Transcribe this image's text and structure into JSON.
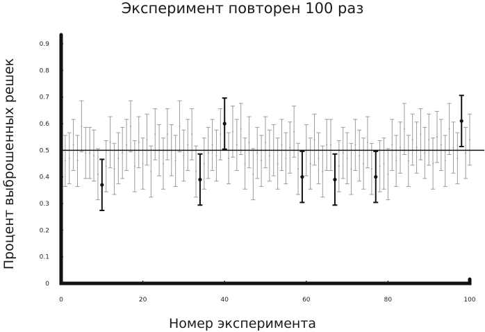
{
  "chart_data": {
    "type": "scatter",
    "title": "Эксперимент повторен 100 раз",
    "xlabel": "Номер эксперимента",
    "ylabel": "Процент выброшенных решек",
    "xlim": [
      0,
      100
    ],
    "ylim": [
      0,
      0.9
    ],
    "x_ticks": [
      "0",
      "20",
      "40",
      "60",
      "80",
      "100"
    ],
    "y_ticks": [
      "0",
      "0.1",
      "0.2",
      "0.3",
      "0.4",
      "0.5",
      "0.6",
      "0.7",
      "0.8",
      "0.9"
    ],
    "reference_line": 0.5,
    "error_halfwidth": 0.096,
    "colors": {
      "inside": "#9b9b9b",
      "outside": "#111111"
    },
    "points": [
      {
        "x": 1,
        "y": 0.46
      },
      {
        "x": 2,
        "y": 0.47
      },
      {
        "x": 3,
        "y": 0.52
      },
      {
        "x": 4,
        "y": 0.46
      },
      {
        "x": 5,
        "y": 0.59
      },
      {
        "x": 6,
        "y": 0.49
      },
      {
        "x": 7,
        "y": 0.49
      },
      {
        "x": 8,
        "y": 0.48
      },
      {
        "x": 9,
        "y": 0.41
      },
      {
        "x": 10,
        "y": 0.37,
        "outside": true
      },
      {
        "x": 11,
        "y": 0.44
      },
      {
        "x": 12,
        "y": 0.53
      },
      {
        "x": 13,
        "y": 0.43
      },
      {
        "x": 14,
        "y": 0.47
      },
      {
        "x": 15,
        "y": 0.49
      },
      {
        "x": 16,
        "y": 0.52
      },
      {
        "x": 17,
        "y": 0.59
      },
      {
        "x": 18,
        "y": 0.44
      },
      {
        "x": 19,
        "y": 0.53
      },
      {
        "x": 20,
        "y": 0.45
      },
      {
        "x": 21,
        "y": 0.54
      },
      {
        "x": 22,
        "y": 0.42
      },
      {
        "x": 23,
        "y": 0.56
      },
      {
        "x": 24,
        "y": 0.5
      },
      {
        "x": 25,
        "y": 0.45
      },
      {
        "x": 26,
        "y": 0.56
      },
      {
        "x": 27,
        "y": 0.5
      },
      {
        "x": 28,
        "y": 0.46
      },
      {
        "x": 29,
        "y": 0.59
      },
      {
        "x": 30,
        "y": 0.48
      },
      {
        "x": 31,
        "y": 0.52
      },
      {
        "x": 32,
        "y": 0.56
      },
      {
        "x": 33,
        "y": 0.42
      },
      {
        "x": 34,
        "y": 0.39,
        "outside": true
      },
      {
        "x": 35,
        "y": 0.45
      },
      {
        "x": 36,
        "y": 0.49
      },
      {
        "x": 37,
        "y": 0.52
      },
      {
        "x": 38,
        "y": 0.48
      },
      {
        "x": 39,
        "y": 0.56
      },
      {
        "x": 40,
        "y": 0.6,
        "outside": true
      },
      {
        "x": 41,
        "y": 0.47
      },
      {
        "x": 42,
        "y": 0.57
      },
      {
        "x": 43,
        "y": 0.52
      },
      {
        "x": 44,
        "y": 0.58
      },
      {
        "x": 45,
        "y": 0.45
      },
      {
        "x": 46,
        "y": 0.53
      },
      {
        "x": 47,
        "y": 0.41
      },
      {
        "x": 48,
        "y": 0.49
      },
      {
        "x": 49,
        "y": 0.46
      },
      {
        "x": 50,
        "y": 0.53
      },
      {
        "x": 51,
        "y": 0.48
      },
      {
        "x": 52,
        "y": 0.5
      },
      {
        "x": 53,
        "y": 0.45
      },
      {
        "x": 54,
        "y": 0.52
      },
      {
        "x": 55,
        "y": 0.47
      },
      {
        "x": 56,
        "y": 0.51
      },
      {
        "x": 57,
        "y": 0.57
      },
      {
        "x": 58,
        "y": 0.43
      },
      {
        "x": 59,
        "y": 0.4,
        "outside": true
      },
      {
        "x": 60,
        "y": 0.5
      },
      {
        "x": 61,
        "y": 0.45
      },
      {
        "x": 62,
        "y": 0.54
      },
      {
        "x": 63,
        "y": 0.47
      },
      {
        "x": 64,
        "y": 0.42
      },
      {
        "x": 65,
        "y": 0.52
      },
      {
        "x": 66,
        "y": 0.52
      },
      {
        "x": 67,
        "y": 0.39,
        "outside": true
      },
      {
        "x": 68,
        "y": 0.44
      },
      {
        "x": 69,
        "y": 0.49
      },
      {
        "x": 70,
        "y": 0.47
      },
      {
        "x": 71,
        "y": 0.43
      },
      {
        "x": 72,
        "y": 0.52
      },
      {
        "x": 73,
        "y": 0.48
      },
      {
        "x": 74,
        "y": 0.45
      },
      {
        "x": 75,
        "y": 0.53
      },
      {
        "x": 76,
        "y": 0.43
      },
      {
        "x": 77,
        "y": 0.4,
        "outside": true
      },
      {
        "x": 78,
        "y": 0.44
      },
      {
        "x": 79,
        "y": 0.45
      },
      {
        "x": 80,
        "y": 0.41
      },
      {
        "x": 81,
        "y": 0.52
      },
      {
        "x": 82,
        "y": 0.46
      },
      {
        "x": 83,
        "y": 0.51
      },
      {
        "x": 84,
        "y": 0.58
      },
      {
        "x": 85,
        "y": 0.46
      },
      {
        "x": 86,
        "y": 0.54
      },
      {
        "x": 87,
        "y": 0.51
      },
      {
        "x": 88,
        "y": 0.56
      },
      {
        "x": 89,
        "y": 0.49
      },
      {
        "x": 90,
        "y": 0.54
      },
      {
        "x": 91,
        "y": 0.45
      },
      {
        "x": 92,
        "y": 0.55
      },
      {
        "x": 93,
        "y": 0.52
      },
      {
        "x": 94,
        "y": 0.46
      },
      {
        "x": 95,
        "y": 0.58
      },
      {
        "x": 96,
        "y": 0.51
      },
      {
        "x": 97,
        "y": 0.47
      },
      {
        "x": 98,
        "y": 0.61,
        "outside": true
      },
      {
        "x": 99,
        "y": 0.49
      },
      {
        "x": 100,
        "y": 0.54
      }
    ]
  }
}
